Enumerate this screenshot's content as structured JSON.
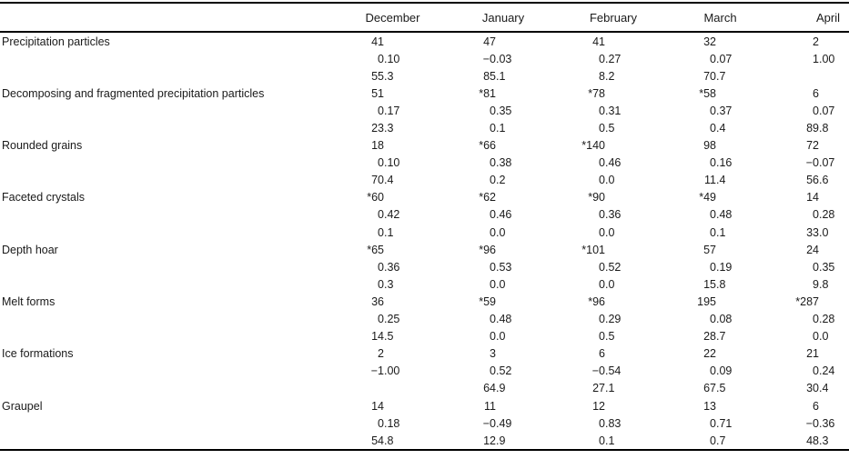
{
  "page": {
    "background": "#ffffff",
    "text_color": "#1a1a1a",
    "rule_color": "#000000"
  },
  "table": {
    "columns": [
      "December",
      "January",
      "February",
      "March",
      "April"
    ],
    "groups": [
      {
        "label": "Precipitation particles",
        "rows": [
          [
            "41",
            "47",
            "41",
            "32",
            "2"
          ],
          [
            "0.10",
            "−0.03",
            "0.27",
            "0.07",
            "1.00"
          ],
          [
            "55.3",
            "85.1",
            "8.2",
            "70.7",
            ""
          ]
        ]
      },
      {
        "label": "Decomposing and fragmented precipitation particles",
        "rows": [
          [
            "51",
            "*81",
            "*78",
            "*58",
            "6"
          ],
          [
            "0.17",
            "0.35",
            "0.31",
            "0.37",
            "0.07"
          ],
          [
            "23.3",
            "0.1",
            "0.5",
            "0.4",
            "89.8"
          ]
        ]
      },
      {
        "label": "Rounded grains",
        "rows": [
          [
            "18",
            "*66",
            "*140",
            "98",
            "72"
          ],
          [
            "0.10",
            "0.38",
            "0.46",
            "0.16",
            "−0.07"
          ],
          [
            "70.4",
            "0.2",
            "0.0",
            "11.4",
            "56.6"
          ]
        ]
      },
      {
        "label": "Faceted crystals",
        "rows": [
          [
            "*60",
            "*62",
            "*90",
            "*49",
            "14"
          ],
          [
            "0.42",
            "0.46",
            "0.36",
            "0.48",
            "0.28"
          ],
          [
            "0.1",
            "0.0",
            "0.0",
            "0.1",
            "33.0"
          ]
        ]
      },
      {
        "label": "Depth hoar",
        "rows": [
          [
            "*65",
            "*96",
            "*101",
            "57",
            "24"
          ],
          [
            "0.36",
            "0.53",
            "0.52",
            "0.19",
            "0.35"
          ],
          [
            "0.3",
            "0.0",
            "0.0",
            "15.8",
            "9.8"
          ]
        ]
      },
      {
        "label": "Melt forms",
        "rows": [
          [
            "36",
            "*59",
            "*96",
            "195",
            "*287"
          ],
          [
            "0.25",
            "0.48",
            "0.29",
            "0.08",
            "0.28"
          ],
          [
            "14.5",
            "0.0",
            "0.5",
            "28.7",
            "0.0"
          ]
        ]
      },
      {
        "label": "Ice formations",
        "rows": [
          [
            "2",
            "3",
            "6",
            "22",
            "21"
          ],
          [
            "−1.00",
            "0.52",
            "−0.54",
            "0.09",
            "0.24"
          ],
          [
            "",
            "64.9",
            "27.1",
            "67.5",
            "30.4"
          ]
        ]
      },
      {
        "label": "Graupel",
        "rows": [
          [
            "14",
            "11",
            "12",
            "13",
            "6"
          ],
          [
            "0.18",
            "−0.49",
            "0.83",
            "0.71",
            "−0.36"
          ],
          [
            "54.8",
            "12.9",
            "0.1",
            "0.7",
            "48.3"
          ]
        ]
      }
    ]
  }
}
